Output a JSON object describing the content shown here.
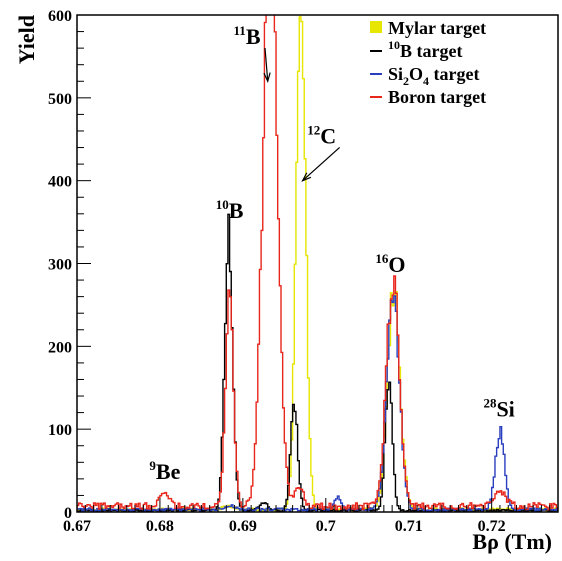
{
  "chart_data": {
    "type": "line",
    "xlabel": "Bρ (Tm)",
    "ylabel": "Yield",
    "xlim": [
      0.67,
      0.728
    ],
    "ylim": [
      0,
      600
    ],
    "x_ticks": [
      0.67,
      0.68,
      0.69,
      0.7,
      0.71,
      0.72
    ],
    "x_tick_labels": [
      "0.67",
      "0.68",
      "0.69",
      "0.7",
      "0.71",
      "0.72"
    ],
    "y_ticks": [
      0,
      100,
      200,
      300,
      400,
      500,
      600
    ],
    "y_tick_labels": [
      "0",
      "100",
      "200",
      "300",
      "400",
      "500",
      "600"
    ],
    "grid": false,
    "legend_position": "top-right",
    "series": [
      {
        "name": "Mylar target",
        "color": "#e6e600",
        "peaks": [
          {
            "x": 0.697,
            "height": 640,
            "sigma": 0.00055
          },
          {
            "x": 0.7082,
            "height": 265,
            "sigma": 0.00075
          },
          {
            "x": 0.6882,
            "height": 5,
            "sigma": 0.0006
          }
        ],
        "baseline": 3
      },
      {
        "name": "10B target",
        "color": "#000000",
        "peaks": [
          {
            "x": 0.6883,
            "height": 332,
            "sigma": 0.00048
          },
          {
            "x": 0.6962,
            "height": 130,
            "sigma": 0.00042
          },
          {
            "x": 0.7076,
            "height": 160,
            "sigma": 0.00042
          },
          {
            "x": 0.6925,
            "height": 10,
            "sigma": 0.0005
          }
        ],
        "baseline": 2
      },
      {
        "name": "Si2O4 target",
        "color": "#2a3fbf",
        "peaks": [
          {
            "x": 0.721,
            "height": 95,
            "sigma": 0.00055
          },
          {
            "x": 0.7081,
            "height": 262,
            "sigma": 0.00075
          },
          {
            "x": 0.7015,
            "height": 15,
            "sigma": 0.0004
          },
          {
            "x": 0.6885,
            "height": 5,
            "sigma": 0.0005
          }
        ],
        "baseline": 3
      },
      {
        "name": "Boron target",
        "color": "#e8261b",
        "peaks": [
          {
            "x": 0.6933,
            "height": 720,
            "sigma": 0.00085
          },
          {
            "x": 0.6884,
            "height": 250,
            "sigma": 0.00048
          },
          {
            "x": 0.7081,
            "height": 270,
            "sigma": 0.00078
          },
          {
            "x": 0.6806,
            "height": 18,
            "sigma": 0.0005
          },
          {
            "x": 0.6968,
            "height": 25,
            "sigma": 0.0005
          },
          {
            "x": 0.7209,
            "height": 18,
            "sigma": 0.0008
          }
        ],
        "baseline": 7
      }
    ],
    "annotations": [
      {
        "sup": "9",
        "text": "Be",
        "x": 0.6806,
        "y": 40
      },
      {
        "sup": "10",
        "text": "B",
        "x": 0.6884,
        "y": 355
      },
      {
        "sup": "11",
        "text": "B",
        "x": 0.6905,
        "y": 565,
        "arrow_to": [
          0.693,
          520
        ]
      },
      {
        "sup": "12",
        "text": "C",
        "x": 0.6995,
        "y": 445,
        "arrow_to": [
          0.6972,
          400
        ]
      },
      {
        "sup": "16",
        "text": "O",
        "x": 0.7078,
        "y": 290
      },
      {
        "sup": "28",
        "text": "Si",
        "x": 0.7209,
        "y": 115
      }
    ]
  }
}
